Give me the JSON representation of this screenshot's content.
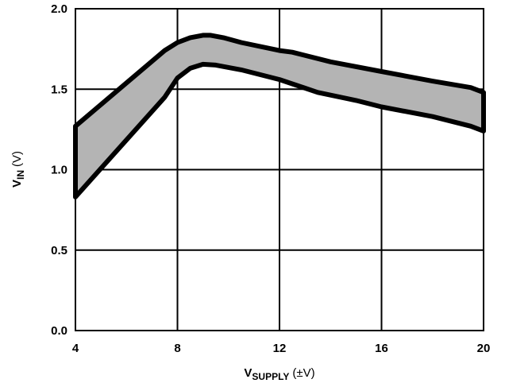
{
  "chart_data": {
    "type": "area",
    "title": "",
    "xlabel": {
      "main": "V",
      "sub": "SUPPLY",
      "suffix": "(±V)"
    },
    "ylabel": {
      "main": "V",
      "sub": "IN",
      "suffix": "(V)"
    },
    "xlim": [
      4,
      20
    ],
    "ylim": [
      0,
      2
    ],
    "xticks": [
      4,
      8,
      12,
      16,
      20
    ],
    "yticks": [
      0.0,
      0.5,
      1.0,
      1.5,
      2.0
    ],
    "xtick_labels": [
      "4",
      "8",
      "12",
      "16",
      "20"
    ],
    "ytick_labels": [
      "0.0",
      "0.5",
      "1.0",
      "1.5",
      "2.0"
    ],
    "grid": true,
    "series": [
      {
        "role": "upper-bound",
        "x": [
          4,
          7.5,
          8,
          8.5,
          9,
          9.3,
          9.8,
          10.5,
          12,
          12.5,
          14,
          16,
          18,
          19.5,
          20
        ],
        "values": [
          1.27,
          1.74,
          1.79,
          1.82,
          1.835,
          1.835,
          1.82,
          1.79,
          1.74,
          1.73,
          1.67,
          1.61,
          1.55,
          1.51,
          1.48
        ]
      },
      {
        "role": "lower-bound",
        "x": [
          4,
          7.5,
          8,
          8.5,
          9,
          9.5,
          10.5,
          12,
          13.5,
          15,
          16,
          18,
          19.5,
          20
        ],
        "values": [
          0.83,
          1.45,
          1.57,
          1.63,
          1.655,
          1.65,
          1.62,
          1.56,
          1.48,
          1.43,
          1.39,
          1.33,
          1.27,
          1.24
        ]
      }
    ],
    "colors": {
      "band_fill": "#b4b4b4",
      "band_stroke": "#000000",
      "grid": "#000000",
      "background": "#ffffff"
    }
  }
}
